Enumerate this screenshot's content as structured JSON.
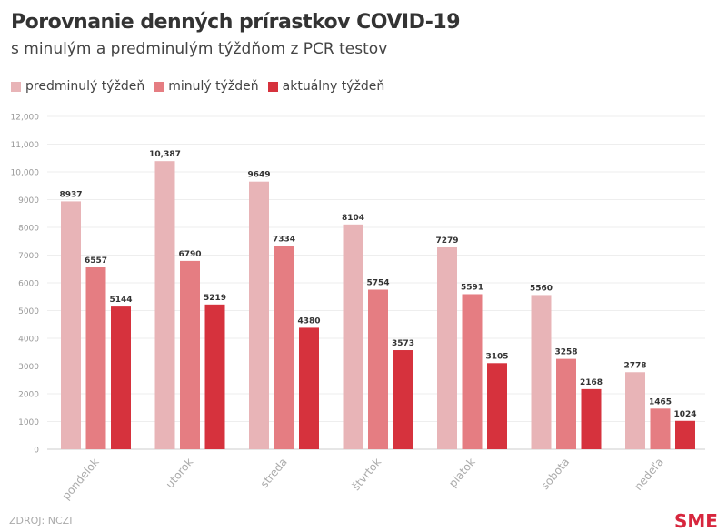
{
  "chart_data": {
    "type": "bar",
    "title": "Porovnanie denných prírastkov COVID-19",
    "subtitle": "s minulým a predminulým týždňom z PCR testov",
    "categories": [
      "pondelok",
      "utorok",
      "streda",
      "štvrtok",
      "piatok",
      "sobota",
      "nedeľa"
    ],
    "series": [
      {
        "name": "predminulý týždeň",
        "color": "#e8b4b7",
        "values": [
          8937,
          10387,
          9649,
          8104,
          7279,
          5560,
          2778
        ]
      },
      {
        "name": "minulý týždeň",
        "color": "#e57d82",
        "values": [
          6557,
          6790,
          7334,
          5754,
          5591,
          3258,
          1465
        ]
      },
      {
        "name": "aktuálny týždeň",
        "color": "#d6323d",
        "values": [
          5144,
          5219,
          4380,
          3573,
          3105,
          2168,
          1024
        ]
      }
    ],
    "data_labels": [
      [
        "8937",
        "10,387",
        "9649",
        "8104",
        "7279",
        "5560",
        "2778"
      ],
      [
        "6557",
        "6790",
        "7334",
        "5754",
        "5591",
        "3258",
        "1465"
      ],
      [
        "5144",
        "5219",
        "4380",
        "3573",
        "3105",
        "2168",
        "1024"
      ]
    ],
    "ylim": [
      0,
      12000
    ],
    "yticks": [
      "0",
      "1000",
      "2000",
      "3000",
      "4000",
      "5000",
      "6000",
      "7000",
      "8000",
      "9000",
      "10,000",
      "11,000",
      "12,000"
    ],
    "grid": true,
    "legend": "top-left"
  },
  "source": "ZDROJ: NCZI",
  "logo": "SME"
}
